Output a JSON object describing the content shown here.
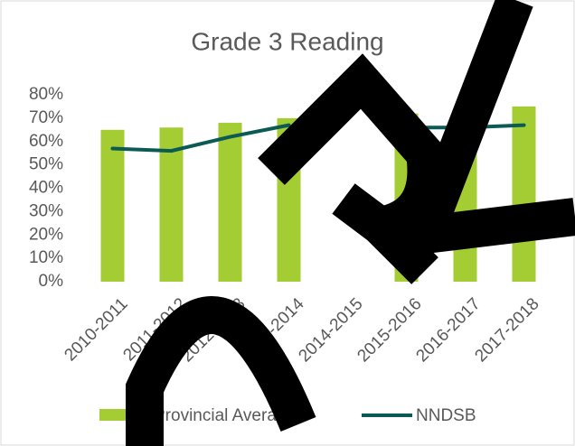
{
  "chart_data": {
    "type": "bar_line",
    "title": "Grade 3 Reading",
    "categories": [
      "2010-2011",
      "2011-2012",
      "2012-2013",
      "2013-2014",
      "2014-2015",
      "2015-2016",
      "2016-2017",
      "2017-2018"
    ],
    "series": [
      {
        "name": "Provincial Average",
        "type": "bar",
        "color": "#a4cc33",
        "values": [
          65,
          66,
          68,
          70,
          null,
          72,
          74,
          75
        ]
      },
      {
        "name": "NNDSB",
        "type": "line",
        "color": "#0b5a55",
        "values": [
          57,
          56,
          62,
          67,
          null,
          66,
          66,
          67
        ]
      }
    ],
    "ylim": [
      0,
      80
    ],
    "yticks": [
      {
        "value": 0,
        "label": "0%"
      },
      {
        "value": 10,
        "label": "10%"
      },
      {
        "value": 20,
        "label": "20%"
      },
      {
        "value": 30,
        "label": "30%"
      },
      {
        "value": 40,
        "label": "40%"
      },
      {
        "value": 50,
        "label": "50%"
      },
      {
        "value": 60,
        "label": "60%"
      },
      {
        "value": 70,
        "label": "70%"
      },
      {
        "value": 80,
        "label": "80%"
      }
    ],
    "grid": false,
    "legend": "bottom"
  }
}
